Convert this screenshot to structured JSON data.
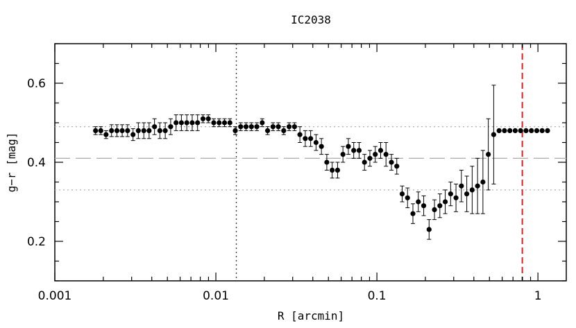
{
  "chart_data": {
    "type": "scatter",
    "title": "IC2038",
    "xlabel": "R [arcmin]",
    "ylabel": "g−r [mag]",
    "x_scale": "log",
    "xlim": [
      0.001,
      1.5
    ],
    "ylim": [
      0.1,
      0.7
    ],
    "x_ticks": [
      {
        "value": 0.001,
        "label": "0.001"
      },
      {
        "value": 0.01,
        "label": "0.01"
      },
      {
        "value": 0.1,
        "label": "0.1"
      },
      {
        "value": 1,
        "label": "1"
      }
    ],
    "y_ticks": [
      {
        "value": 0.2,
        "label": "0.2"
      },
      {
        "value": 0.4,
        "label": "0.4"
      },
      {
        "value": 0.6,
        "label": "0.6"
      }
    ],
    "grid": false,
    "legend": "none",
    "marker_color": "#000000",
    "reference_lines": [
      {
        "orientation": "horizontal",
        "value": 0.41,
        "style": "dashed",
        "color": "#b0b0b0"
      },
      {
        "orientation": "horizontal",
        "value": 0.49,
        "style": "dotted",
        "color": "#b0b0b0"
      },
      {
        "orientation": "horizontal",
        "value": 0.33,
        "style": "dotted",
        "color": "#b0b0b0"
      },
      {
        "orientation": "vertical",
        "value": 0.0134,
        "style": "dotted",
        "color": "#333333"
      },
      {
        "orientation": "vertical",
        "value": 0.8,
        "style": "dashed",
        "color": "#e03030"
      }
    ],
    "series": [
      {
        "x": [
          0.00179,
          0.00193,
          0.00208,
          0.00225,
          0.00243,
          0.00262,
          0.00283,
          0.00306,
          0.0033,
          0.00357,
          0.00385,
          0.00416,
          0.00449,
          0.00485,
          0.00524,
          0.00566,
          0.00611,
          0.0066,
          0.00713,
          0.0077,
          0.00832,
          0.00898,
          0.0097,
          0.01048,
          0.01132,
          0.01222,
          0.0132,
          0.01426,
          0.0154,
          0.01663,
          0.01796,
          0.0194,
          0.02095,
          0.02263,
          0.02444,
          0.02639,
          0.02851,
          0.03079,
          0.03325,
          0.03591,
          0.03879,
          0.04189,
          0.04524,
          0.04886,
          0.05277,
          0.05699,
          0.06155,
          0.06648,
          0.0718,
          0.07754,
          0.08375,
          0.09045,
          0.09768,
          0.1055,
          0.1139,
          0.1231,
          0.1329,
          0.1435,
          0.155,
          0.1674,
          0.1808,
          0.1953,
          0.2109,
          0.2278,
          0.246,
          0.2657,
          0.287,
          0.3099,
          0.3347,
          0.3615,
          0.3905,
          0.4217,
          0.4554,
          0.4919,
          0.5313,
          0.5738,
          0.6197,
          0.6693,
          0.7228,
          0.7806,
          0.8431,
          0.9106,
          0.9834,
          1.0621,
          1.147
        ],
        "y": [
          0.48,
          0.48,
          0.47,
          0.48,
          0.48,
          0.48,
          0.48,
          0.47,
          0.48,
          0.48,
          0.48,
          0.49,
          0.48,
          0.48,
          0.49,
          0.5,
          0.5,
          0.5,
          0.5,
          0.5,
          0.51,
          0.51,
          0.5,
          0.5,
          0.5,
          0.5,
          0.48,
          0.49,
          0.49,
          0.49,
          0.49,
          0.5,
          0.48,
          0.49,
          0.49,
          0.48,
          0.49,
          0.49,
          0.47,
          0.46,
          0.46,
          0.45,
          0.44,
          0.4,
          0.38,
          0.38,
          0.42,
          0.44,
          0.43,
          0.43,
          0.4,
          0.41,
          0.42,
          0.43,
          0.42,
          0.4,
          0.39,
          0.32,
          0.31,
          0.27,
          0.3,
          0.29,
          0.23,
          0.28,
          0.29,
          0.3,
          0.32,
          0.31,
          0.34,
          0.32,
          0.33,
          0.34,
          0.35,
          0.42,
          0.47,
          0.48,
          0.48,
          0.48,
          0.48,
          0.48,
          0.48,
          0.48,
          0.48,
          0.48,
          0.48
        ],
        "yerr": [
          0.01,
          0.01,
          0.01,
          0.015,
          0.015,
          0.015,
          0.015,
          0.015,
          0.02,
          0.02,
          0.02,
          0.02,
          0.02,
          0.02,
          0.02,
          0.02,
          0.02,
          0.02,
          0.02,
          0.02,
          0.01,
          0.01,
          0.01,
          0.01,
          0.01,
          0.01,
          0.01,
          0.01,
          0.01,
          0.01,
          0.01,
          0.01,
          0.01,
          0.01,
          0.01,
          0.01,
          0.01,
          0.01,
          0.02,
          0.02,
          0.02,
          0.02,
          0.02,
          0.02,
          0.02,
          0.02,
          0.02,
          0.02,
          0.02,
          0.02,
          0.02,
          0.02,
          0.02,
          0.02,
          0.03,
          0.02,
          0.02,
          0.02,
          0.025,
          0.025,
          0.025,
          0.025,
          0.025,
          0.025,
          0.03,
          0.03,
          0.03,
          0.035,
          0.04,
          0.045,
          0.06,
          0.07,
          0.08,
          0.09,
          0.125,
          0.0,
          0.0,
          0.0,
          0.0,
          0.0,
          0.0,
          0.0,
          0.0,
          0.0,
          0.0
        ]
      }
    ]
  }
}
